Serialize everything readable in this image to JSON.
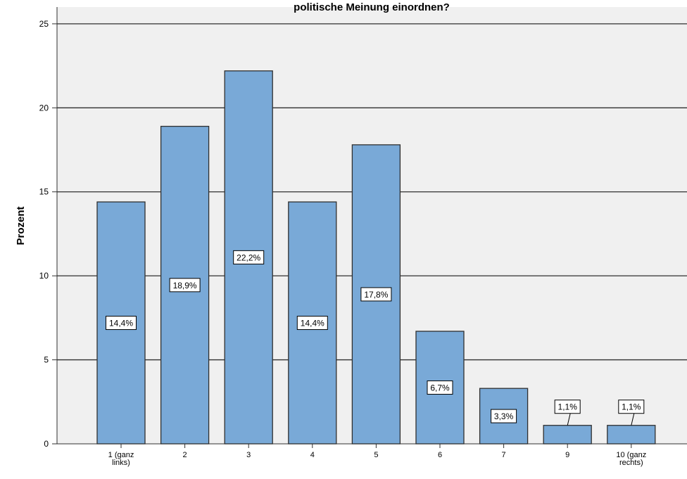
{
  "chart_data": {
    "type": "bar",
    "title": "politische Meinung einordnen?",
    "xlabel": "",
    "ylabel": "Prozent",
    "ylim": [
      0,
      26
    ],
    "yticks": [
      0,
      5,
      10,
      15,
      20,
      25
    ],
    "grid": true,
    "categories": [
      [
        "1 (ganz",
        "links)"
      ],
      [
        "2"
      ],
      [
        "3"
      ],
      [
        "4"
      ],
      [
        "5"
      ],
      [
        "6"
      ],
      [
        "7"
      ],
      [
        "9"
      ],
      [
        "10 (ganz",
        "rechts)"
      ]
    ],
    "values": [
      14.4,
      18.9,
      22.2,
      14.4,
      17.8,
      6.7,
      3.3,
      1.1,
      1.1
    ],
    "data_labels": [
      "14,4%",
      "18,9%",
      "22,2%",
      "14,4%",
      "17,8%",
      "6,7%",
      "3,3%",
      "1,1%",
      "1,1%"
    ],
    "colors": {
      "bar_fill": "#79a9d7",
      "bar_stroke": "#2f2f2f",
      "plot_bg": "#f0f0f0",
      "gridline": "#2f2f2f"
    }
  }
}
